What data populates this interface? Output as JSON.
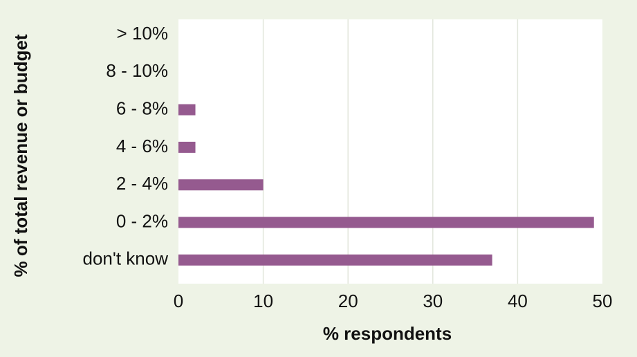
{
  "chart_data": {
    "type": "bar",
    "orientation": "horizontal",
    "categories": [
      "> 10%",
      "8 - 10%",
      "6 - 8%",
      "4 - 6%",
      "2 - 4%",
      "0 - 2%",
      "don't know"
    ],
    "values": [
      0,
      0,
      2,
      2,
      10,
      49,
      37
    ],
    "color": "#955a8f",
    "x_label": "% respondents",
    "y_label": "% of total revenue or budget",
    "xlim": [
      0,
      50
    ],
    "xticks": [
      0,
      10,
      20,
      30,
      40,
      50
    ],
    "grid": true
  }
}
